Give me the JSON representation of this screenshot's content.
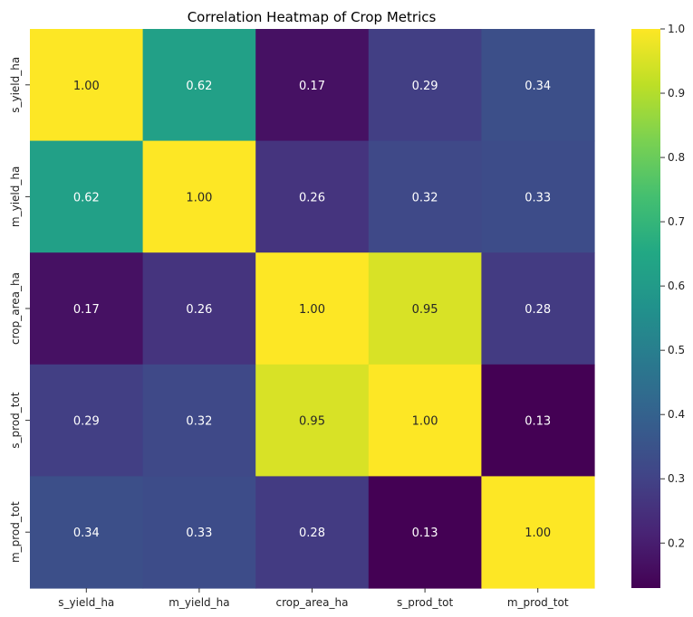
{
  "chart_data": {
    "type": "heatmap",
    "title": "Correlation Heatmap of Crop Metrics",
    "xlabel": "",
    "ylabel": "",
    "x_categories": [
      "s_yield_ha",
      "m_yield_ha",
      "crop_area_ha",
      "s_prod_tot",
      "m_prod_tot"
    ],
    "y_categories": [
      "s_yield_ha",
      "m_yield_ha",
      "crop_area_ha",
      "s_prod_tot",
      "m_prod_tot"
    ],
    "values": [
      [
        1.0,
        0.62,
        0.17,
        0.29,
        0.34
      ],
      [
        0.62,
        1.0,
        0.26,
        0.32,
        0.33
      ],
      [
        0.17,
        0.26,
        1.0,
        0.95,
        0.28
      ],
      [
        0.29,
        0.32,
        0.95,
        1.0,
        0.13
      ],
      [
        0.34,
        0.33,
        0.28,
        0.13,
        1.0
      ]
    ],
    "cell_labels": [
      [
        "1.00",
        "0.62",
        "0.17",
        "0.29",
        "0.34"
      ],
      [
        "0.62",
        "1.00",
        "0.26",
        "0.32",
        "0.33"
      ],
      [
        "0.17",
        "0.26",
        "1.00",
        "0.95",
        "0.28"
      ],
      [
        "0.29",
        "0.32",
        "0.95",
        "1.00",
        "0.13"
      ],
      [
        "0.34",
        "0.33",
        "0.28",
        "0.13",
        "1.00"
      ]
    ],
    "colormap": "viridis",
    "vmin": 0.13,
    "vmax": 1.0,
    "colorbar_ticks": [
      "0.2",
      "0.3",
      "0.4",
      "0.5",
      "0.6",
      "0.7",
      "0.8",
      "0.9",
      "1.0"
    ],
    "colorbar_tick_values": [
      0.2,
      0.3,
      0.4,
      0.5,
      0.6,
      0.7,
      0.8,
      0.9,
      1.0
    ]
  }
}
